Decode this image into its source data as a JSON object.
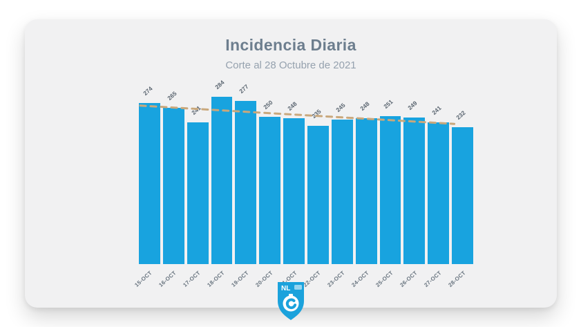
{
  "page": {
    "background": "#ffffff",
    "card_background": "#f1f1f2"
  },
  "header": {
    "title": "Incidencia Diaria",
    "subtitle": "Corte al 28 Octubre de 2021"
  },
  "chart_data": {
    "type": "bar",
    "title": "Incidencia Diaria",
    "subtitle": "Corte al 28 Octubre de 2021",
    "categories": [
      "15-OCT",
      "16-OCT",
      "17-OCT",
      "18-OCT",
      "19-OCT",
      "20-OCT",
      "21-OCT",
      "22-OCT",
      "23-OCT",
      "24-OCT",
      "25-OCT",
      "26-OCT",
      "27-OCT",
      "28-OCT"
    ],
    "values": [
      274,
      265,
      241,
      284,
      277,
      250,
      248,
      235,
      245,
      248,
      251,
      249,
      241,
      232
    ],
    "xlabel": "",
    "ylabel": "",
    "ylim": [
      0,
      284
    ],
    "grid": false,
    "legend": false,
    "bar_color": "#18A3DF",
    "value_label_color": "#5a6570",
    "axis_label_color": "#68747f",
    "trendline": {
      "style": "dashed",
      "color": "#C9A87C",
      "start_value": 269,
      "end_value": 238
    }
  },
  "logo": {
    "text": "NL",
    "badge_color": "#1BA2DC",
    "emblem_color": "#ffffff"
  }
}
